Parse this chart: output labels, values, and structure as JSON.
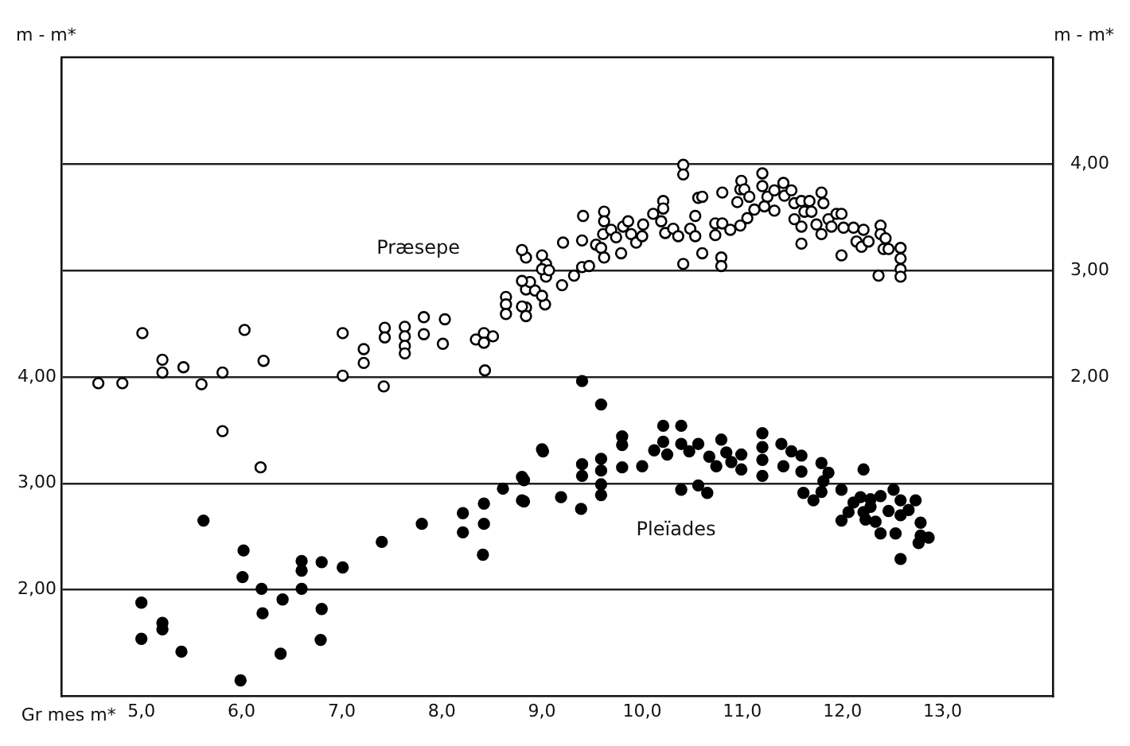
{
  "chart_data": {
    "type": "scatter",
    "xlabel": "Gr mes m*",
    "ylabel": "m - m*",
    "y2label": "m - m*",
    "xlim": [
      4.2,
      14.1
    ],
    "ylim": [
      1,
      7
    ],
    "y2lim": [
      -1,
      5
    ],
    "xticks": [
      {
        "value": 5,
        "label": "5,0"
      },
      {
        "value": 6,
        "label": "6,0"
      },
      {
        "value": 7,
        "label": "7,0"
      },
      {
        "value": 8,
        "label": "8,0"
      },
      {
        "value": 9,
        "label": "9,0"
      },
      {
        "value": 10,
        "label": "10,0"
      },
      {
        "value": 11,
        "label": "11,0"
      },
      {
        "value": 12,
        "label": "12,0"
      },
      {
        "value": 13,
        "label": "13,0"
      }
    ],
    "yticks": [
      {
        "value": 2,
        "label": "2,00"
      },
      {
        "value": 3,
        "label": "3,00"
      },
      {
        "value": 4,
        "label": "4,00"
      },
      {
        "value": 5,
        "label": null
      },
      {
        "value": 6,
        "label": null
      }
    ],
    "y2ticks": [
      {
        "value": 2,
        "label": "2,00"
      },
      {
        "value": 3,
        "label": "3,00"
      },
      {
        "value": 4,
        "label": "4,00"
      }
    ],
    "grid": "y",
    "marker": "circle",
    "series": [
      {
        "name": "Præsepe",
        "color": "#000000",
        "axis": "y2",
        "x": [
          4.57,
          4.81,
          5.01,
          5.21,
          5.21,
          5.42,
          5.6,
          5.81,
          5.81,
          6.03,
          6.19,
          6.22,
          7.01,
          7.01,
          7.22,
          7.22,
          7.43,
          7.43,
          7.42,
          7.63,
          7.63,
          7.63,
          7.63,
          7.82,
          7.82,
          8.03,
          8.01,
          8.34,
          8.42,
          8.51,
          8.42,
          8.43,
          8.64,
          8.64,
          8.64,
          8.84,
          8.93,
          8.84,
          8.84,
          8.84,
          9.04,
          9.04,
          9.03,
          8.8,
          9.0,
          9.0,
          9.07,
          8.88,
          8.8,
          8.8,
          9.0,
          9.21,
          9.2,
          9.32,
          9.41,
          9.4,
          9.4,
          9.47,
          9.54,
          9.62,
          9.62,
          9.61,
          9.59,
          9.62,
          9.69,
          9.74,
          9.79,
          9.81,
          9.86,
          9.89,
          9.94,
          10.01,
          10.0,
          10.11,
          10.21,
          10.21,
          10.19,
          10.23,
          10.31,
          10.36,
          10.41,
          10.41,
          10.41,
          10.48,
          10.53,
          10.56,
          10.6,
          10.53,
          10.6,
          10.73,
          10.73,
          10.8,
          10.8,
          10.79,
          10.79,
          10.88,
          10.98,
          10.99,
          11.02,
          10.95,
          10.98,
          11.05,
          11.07,
          11.12,
          11.2,
          11.2,
          11.25,
          11.22,
          11.32,
          11.32,
          11.41,
          11.42,
          11.49,
          11.52,
          11.52,
          11.59,
          11.62,
          11.59,
          11.59,
          11.67,
          11.69,
          11.74,
          11.79,
          11.79,
          11.81,
          11.86,
          11.89,
          11.94,
          11.99,
          11.99,
          12.01,
          12.11,
          12.14,
          12.21,
          12.19,
          12.26,
          12.38,
          12.38,
          12.41,
          12.43,
          12.46,
          12.36,
          12.58,
          12.58,
          12.58,
          12.58
        ],
        "values": [
          1.94,
          1.94,
          2.41,
          2.16,
          2.04,
          2.09,
          1.93,
          2.04,
          1.49,
          2.44,
          1.15,
          2.15,
          2.41,
          2.01,
          2.26,
          2.13,
          2.46,
          2.37,
          1.91,
          2.47,
          2.38,
          2.29,
          2.22,
          2.56,
          2.4,
          2.54,
          2.31,
          2.35,
          2.41,
          2.38,
          2.32,
          2.06,
          2.75,
          2.68,
          2.59,
          2.82,
          2.81,
          2.65,
          2.57,
          3.12,
          3.06,
          2.94,
          2.68,
          3.19,
          3.14,
          3.01,
          3.0,
          2.89,
          2.9,
          2.66,
          2.76,
          3.26,
          2.86,
          2.95,
          3.51,
          3.28,
          3.03,
          3.04,
          3.24,
          3.55,
          3.46,
          3.34,
          3.21,
          3.12,
          3.38,
          3.31,
          3.16,
          3.41,
          3.46,
          3.34,
          3.26,
          3.43,
          3.32,
          3.53,
          3.65,
          3.58,
          3.46,
          3.35,
          3.39,
          3.32,
          3.99,
          3.9,
          3.06,
          3.39,
          3.32,
          3.68,
          3.69,
          3.51,
          3.16,
          3.44,
          3.33,
          3.73,
          3.44,
          3.12,
          3.04,
          3.38,
          3.76,
          3.84,
          3.76,
          3.64,
          3.42,
          3.49,
          3.69,
          3.57,
          3.91,
          3.79,
          3.69,
          3.6,
          3.75,
          3.56,
          3.82,
          3.7,
          3.75,
          3.63,
          3.48,
          3.65,
          3.55,
          3.41,
          3.25,
          3.65,
          3.55,
          3.43,
          3.73,
          3.34,
          3.63,
          3.48,
          3.41,
          3.53,
          3.53,
          3.14,
          3.4,
          3.4,
          3.27,
          3.38,
          3.22,
          3.27,
          3.42,
          3.34,
          3.2,
          3.3,
          3.2,
          2.95,
          3.21,
          3.11,
          3.01,
          2.94
        ]
      },
      {
        "name": "Pleïades",
        "color": "#000000",
        "x": [
          5.0,
          5.0,
          5.21,
          5.21,
          5.4,
          5.62,
          6.02,
          6.01,
          5.99,
          6.2,
          6.21,
          6.41,
          6.39,
          6.6,
          6.6,
          6.6,
          6.8,
          6.8,
          6.79,
          7.01,
          7.4,
          7.8,
          8.21,
          8.21,
          8.42,
          8.42,
          8.41,
          8.61,
          8.82,
          8.82,
          9.01,
          9.4,
          9.59,
          9.0,
          8.8,
          8.8,
          9.19,
          9.4,
          9.4,
          9.39,
          9.59,
          9.59,
          9.59,
          9.59,
          9.8,
          9.8,
          9.8,
          10.0,
          10.12,
          10.21,
          10.21,
          10.25,
          10.39,
          10.39,
          10.39,
          10.47,
          10.56,
          10.56,
          10.65,
          10.67,
          10.74,
          10.79,
          10.84,
          10.89,
          10.99,
          10.99,
          11.2,
          11.2,
          11.2,
          11.2,
          11.39,
          11.41,
          11.49,
          11.59,
          11.59,
          11.61,
          11.71,
          11.79,
          11.81,
          11.79,
          11.86,
          11.99,
          11.99,
          12.21,
          12.11,
          12.18,
          12.21,
          12.28,
          12.28,
          12.38,
          12.38,
          12.46,
          12.51,
          12.53,
          12.58,
          12.58,
          12.66,
          12.73,
          12.78,
          12.78,
          12.86,
          12.76,
          12.58,
          12.23,
          12.06,
          12.33
        ],
        "values": [
          1.88,
          1.54,
          1.69,
          1.63,
          1.42,
          2.65,
          2.37,
          2.12,
          1.15,
          2.01,
          1.78,
          1.91,
          1.4,
          2.27,
          2.18,
          2.01,
          2.26,
          1.82,
          1.53,
          2.21,
          2.45,
          2.62,
          2.72,
          2.54,
          2.81,
          2.62,
          2.33,
          2.95,
          3.03,
          2.83,
          3.3,
          3.96,
          3.74,
          3.32,
          3.06,
          2.84,
          2.87,
          3.18,
          3.07,
          2.76,
          3.23,
          3.12,
          2.99,
          2.89,
          3.44,
          3.36,
          3.15,
          3.16,
          3.31,
          3.54,
          3.39,
          3.27,
          3.54,
          3.37,
          2.94,
          3.3,
          3.37,
          2.98,
          2.91,
          3.25,
          3.16,
          3.41,
          3.29,
          3.2,
          3.27,
          3.13,
          3.47,
          3.34,
          3.22,
          3.07,
          3.37,
          3.16,
          3.3,
          3.26,
          3.11,
          2.91,
          2.84,
          3.19,
          3.02,
          2.92,
          3.1,
          2.94,
          2.65,
          3.13,
          2.82,
          2.87,
          2.73,
          2.85,
          2.78,
          2.88,
          2.53,
          2.74,
          2.94,
          2.53,
          2.84,
          2.7,
          2.75,
          2.84,
          2.63,
          2.51,
          2.49,
          2.44,
          2.29,
          2.66,
          2.73,
          2.64
        ]
      }
    ]
  }
}
